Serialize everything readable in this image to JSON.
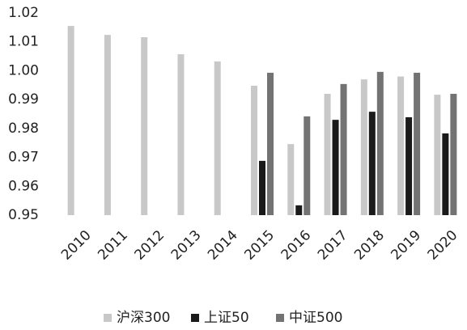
{
  "chart_data": {
    "type": "bar",
    "categories": [
      "2010",
      "2011",
      "2012",
      "2013",
      "2014",
      "2015",
      "2016",
      "2017",
      "2018",
      "2019",
      "2020"
    ],
    "series": [
      {
        "name": "沪深300",
        "color": "#c8c8c8",
        "values": [
          1.0155,
          1.0124,
          1.0116,
          1.0057,
          1.0032,
          0.9948,
          0.9746,
          0.992,
          0.997,
          0.998,
          0.9917
        ]
      },
      {
        "name": "上证50",
        "color": "#1a1a1a",
        "values": [
          null,
          null,
          null,
          null,
          null,
          0.9688,
          0.9534,
          0.983,
          0.9858,
          0.9839,
          0.9783
        ]
      },
      {
        "name": "中证500",
        "color": "#737373",
        "values": [
          null,
          null,
          null,
          null,
          null,
          0.9993,
          0.9842,
          0.9954,
          0.9996,
          0.9993,
          0.992
        ]
      }
    ],
    "ylim": [
      0.95,
      1.02
    ],
    "yticks": [
      0.95,
      0.96,
      0.97,
      0.98,
      0.99,
      {
        "value": 1.0,
        "label": "1.00"
      },
      1.01,
      1.02
    ],
    "grid": false,
    "legend": "bottom"
  }
}
